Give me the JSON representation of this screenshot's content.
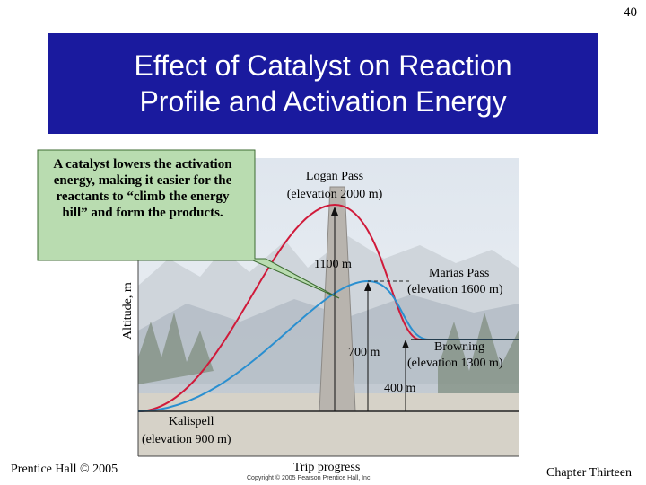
{
  "slide": {
    "number": "40"
  },
  "title": {
    "line1": "Effect of Catalyst on Reaction",
    "line2": "Profile and Activation Energy"
  },
  "callout": {
    "text": "A catalyst lowers the activation energy, making it easier for the reactants to “climb the energy hill” and form the products."
  },
  "figure": {
    "y_axis_label": "Altitude, m",
    "x_axis_label": "Trip progress",
    "logan_pass": "Logan Pass",
    "logan_elev": "(elevation 2000 m)",
    "gap_1100": "1100 m",
    "marias_pass": "Marias Pass",
    "marias_elev": "(elevation 1600 m)",
    "gap_700": "700 m",
    "browning": "Browning",
    "browning_elev": "(elevation 1300 m)",
    "gap_400": "400 m",
    "kalispell": "Kalispell",
    "kalispell_elev": "(elevation 900 m)",
    "copyright": "Copyright © 2005 Pearson Prentice Hall, Inc.",
    "colors": {
      "uncatalyzed": "#d01a3a",
      "catalyzed": "#2a8fd0"
    }
  },
  "footer": {
    "left": "Prentice Hall © 2005",
    "right": "Chapter Thirteen"
  }
}
